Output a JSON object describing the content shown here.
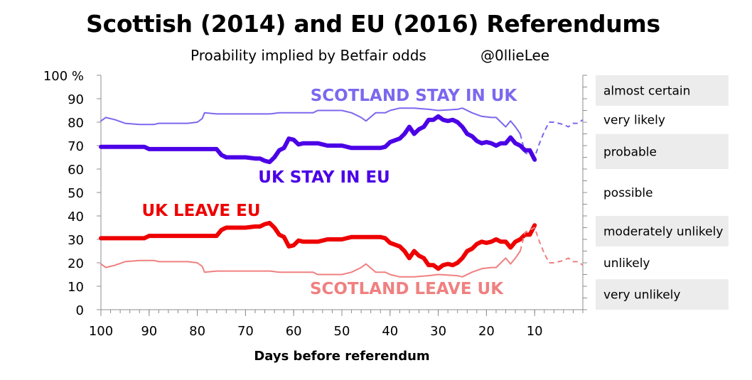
{
  "title": "Scottish (2014) and EU (2016) Referendums",
  "subtitle": "Proability implied by Betfair odds",
  "credit": "@0llieLee",
  "chart_data": {
    "type": "line",
    "xlabel": "Days before referendum",
    "ylabel": "",
    "xlim": [
      100,
      0
    ],
    "ylim": [
      0,
      100
    ],
    "x_ticks": [
      "100",
      "90",
      "80",
      "70",
      "60",
      "50",
      "40",
      "30",
      "20",
      "10"
    ],
    "y_ticks": [
      "0",
      "10",
      "20",
      "30",
      "40",
      "50",
      "60",
      "70",
      "80",
      "90",
      "100 %"
    ],
    "grid": false,
    "likelihood_bands": [
      {
        "label": "almost certain",
        "range": [
          87,
          100
        ],
        "shaded": true
      },
      {
        "label": "very likely",
        "range": [
          75,
          87
        ],
        "shaded": false
      },
      {
        "label": "probable",
        "range": [
          60,
          75
        ],
        "shaded": true
      },
      {
        "label": "possible",
        "range": [
          40,
          60
        ],
        "shaded": false
      },
      {
        "label": "moderately unlikely",
        "range": [
          27,
          40
        ],
        "shaded": true
      },
      {
        "label": "unlikely",
        "range": [
          13,
          27
        ],
        "shaded": false
      },
      {
        "label": "very unlikely",
        "range": [
          0,
          13
        ],
        "shaded": true
      }
    ],
    "series": [
      {
        "name": "SCOTLAND STAY IN UK",
        "color": "#7b68ee",
        "width": 2,
        "points": [
          [
            100,
            80.5
          ],
          [
            99,
            82
          ],
          [
            97,
            81
          ],
          [
            95,
            79.5
          ],
          [
            92,
            79
          ],
          [
            89,
            79
          ],
          [
            88,
            79.5
          ],
          [
            85,
            79.5
          ],
          [
            82,
            79.5
          ],
          [
            80,
            80
          ],
          [
            79,
            81.5
          ],
          [
            78.5,
            84
          ],
          [
            76,
            83.5
          ],
          [
            73,
            83.5
          ],
          [
            70,
            83.5
          ],
          [
            67,
            83.5
          ],
          [
            65,
            83.5
          ],
          [
            63,
            84
          ],
          [
            58,
            84
          ],
          [
            56,
            84
          ],
          [
            55,
            85
          ],
          [
            50,
            85
          ],
          [
            48,
            84
          ],
          [
            46,
            82
          ],
          [
            45,
            80.5
          ],
          [
            43,
            84
          ],
          [
            41,
            84
          ],
          [
            40,
            85
          ],
          [
            38,
            86
          ],
          [
            35,
            86
          ],
          [
            32,
            85.5
          ],
          [
            30,
            85
          ],
          [
            26,
            85.5
          ],
          [
            25,
            86
          ],
          [
            23,
            84
          ],
          [
            21,
            82.5
          ],
          [
            19,
            82
          ],
          [
            18,
            82
          ],
          [
            16,
            78
          ],
          [
            15,
            80.5
          ],
          [
            14,
            78
          ],
          [
            13,
            75
          ]
        ],
        "dashed_points": [
          [
            13,
            75
          ],
          [
            12,
            67
          ],
          [
            11,
            66
          ],
          [
            10,
            65
          ],
          [
            9,
            71
          ],
          [
            8,
            76
          ],
          [
            7,
            80
          ],
          [
            6,
            80
          ],
          [
            4,
            79
          ],
          [
            3,
            78
          ],
          [
            2,
            79.5
          ],
          [
            1,
            79.5
          ],
          [
            0,
            81
          ]
        ]
      },
      {
        "name": "UK STAY IN EU",
        "color": "#4b00e6",
        "width": 6,
        "points": [
          [
            100,
            69.5
          ],
          [
            93,
            69.5
          ],
          [
            91,
            69.5
          ],
          [
            90,
            68.5
          ],
          [
            85,
            68.5
          ],
          [
            80,
            68.5
          ],
          [
            76,
            68.5
          ],
          [
            75,
            66
          ],
          [
            74,
            65
          ],
          [
            72,
            65
          ],
          [
            70,
            65
          ],
          [
            68,
            64.5
          ],
          [
            67,
            64.5
          ],
          [
            66,
            63.5
          ],
          [
            65,
            63
          ],
          [
            64,
            65
          ],
          [
            63,
            68
          ],
          [
            62,
            69
          ],
          [
            61,
            73
          ],
          [
            60,
            72.5
          ],
          [
            59,
            70.5
          ],
          [
            58,
            71
          ],
          [
            55,
            71
          ],
          [
            53,
            70
          ],
          [
            50,
            70
          ],
          [
            48,
            69
          ],
          [
            45,
            69
          ],
          [
            42,
            69
          ],
          [
            41,
            69.5
          ],
          [
            40,
            71.5
          ],
          [
            38,
            73
          ],
          [
            37,
            75
          ],
          [
            36,
            78
          ],
          [
            35,
            75
          ],
          [
            34,
            77
          ],
          [
            33,
            78
          ],
          [
            32,
            81
          ],
          [
            31,
            81
          ],
          [
            30,
            82.5
          ],
          [
            29,
            81
          ],
          [
            28,
            80.5
          ],
          [
            27,
            81
          ],
          [
            26,
            80
          ],
          [
            25,
            78
          ],
          [
            24,
            75
          ],
          [
            23,
            74
          ],
          [
            22,
            72
          ],
          [
            21,
            71
          ],
          [
            20,
            71.5
          ],
          [
            19,
            71
          ],
          [
            18,
            70
          ],
          [
            17,
            71
          ],
          [
            16,
            71
          ],
          [
            15,
            73.5
          ],
          [
            14,
            71
          ],
          [
            13,
            70
          ],
          [
            12,
            68
          ],
          [
            11,
            68
          ],
          [
            10,
            64
          ]
        ]
      },
      {
        "name": "UK LEAVE EU",
        "color": "#ee0000",
        "width": 6,
        "points": [
          [
            100,
            30.5
          ],
          [
            93,
            30.5
          ],
          [
            91,
            30.5
          ],
          [
            90,
            31.5
          ],
          [
            85,
            31.5
          ],
          [
            80,
            31.5
          ],
          [
            76,
            31.5
          ],
          [
            75,
            34
          ],
          [
            74,
            35
          ],
          [
            72,
            35
          ],
          [
            70,
            35
          ],
          [
            68,
            35.5
          ],
          [
            67,
            35.5
          ],
          [
            66,
            36.5
          ],
          [
            65,
            37
          ],
          [
            64,
            35
          ],
          [
            63,
            32
          ],
          [
            62,
            31
          ],
          [
            61,
            27
          ],
          [
            60,
            27.5
          ],
          [
            59,
            29.5
          ],
          [
            58,
            29
          ],
          [
            55,
            29
          ],
          [
            53,
            30
          ],
          [
            50,
            30
          ],
          [
            48,
            31
          ],
          [
            45,
            31
          ],
          [
            42,
            31
          ],
          [
            41,
            30.5
          ],
          [
            40,
            28.5
          ],
          [
            38,
            27
          ],
          [
            37,
            25
          ],
          [
            36,
            22
          ],
          [
            35,
            25
          ],
          [
            34,
            23
          ],
          [
            33,
            22
          ],
          [
            32,
            19
          ],
          [
            31,
            19
          ],
          [
            30,
            17.5
          ],
          [
            29,
            19
          ],
          [
            28,
            19.5
          ],
          [
            27,
            19
          ],
          [
            26,
            20
          ],
          [
            25,
            22
          ],
          [
            24,
            25
          ],
          [
            23,
            26
          ],
          [
            22,
            28
          ],
          [
            21,
            29
          ],
          [
            20,
            28.5
          ],
          [
            19,
            29
          ],
          [
            18,
            30
          ],
          [
            17,
            29
          ],
          [
            16,
            29
          ],
          [
            15,
            26.5
          ],
          [
            14,
            29
          ],
          [
            13,
            30
          ],
          [
            12,
            32
          ],
          [
            11,
            32
          ],
          [
            10,
            36
          ]
        ]
      },
      {
        "name": "SCOTLAND LEAVE UK",
        "color": "#f08080",
        "width": 2,
        "points": [
          [
            100,
            19.5
          ],
          [
            99,
            18
          ],
          [
            97,
            19
          ],
          [
            95,
            20.5
          ],
          [
            92,
            21
          ],
          [
            89,
            21
          ],
          [
            88,
            20.5
          ],
          [
            85,
            20.5
          ],
          [
            82,
            20.5
          ],
          [
            80,
            20
          ],
          [
            79,
            18.5
          ],
          [
            78.5,
            16
          ],
          [
            76,
            16.5
          ],
          [
            73,
            16.5
          ],
          [
            70,
            16.5
          ],
          [
            67,
            16.5
          ],
          [
            65,
            16.5
          ],
          [
            63,
            16
          ],
          [
            58,
            16
          ],
          [
            56,
            16
          ],
          [
            55,
            15
          ],
          [
            50,
            15
          ],
          [
            48,
            16
          ],
          [
            46,
            18
          ],
          [
            45,
            19.5
          ],
          [
            43,
            16
          ],
          [
            41,
            16
          ],
          [
            40,
            15
          ],
          [
            38,
            14
          ],
          [
            35,
            14
          ],
          [
            32,
            14.5
          ],
          [
            30,
            15
          ],
          [
            26,
            14.5
          ],
          [
            25,
            14
          ],
          [
            23,
            16
          ],
          [
            21,
            17.5
          ],
          [
            19,
            18
          ],
          [
            18,
            18
          ],
          [
            16,
            22
          ],
          [
            15,
            19.5
          ],
          [
            14,
            22
          ],
          [
            13,
            25
          ]
        ],
        "dashed_points": [
          [
            13,
            25
          ],
          [
            12,
            33
          ],
          [
            11,
            34
          ],
          [
            10,
            35
          ],
          [
            9,
            29
          ],
          [
            8,
            24
          ],
          [
            7,
            20
          ],
          [
            6,
            20
          ],
          [
            4,
            21
          ],
          [
            3,
            22
          ],
          [
            2,
            20.5
          ],
          [
            1,
            20.5
          ],
          [
            0,
            19
          ]
        ]
      }
    ],
    "annotations": [
      {
        "text": "SCOTLAND STAY IN UK",
        "color": "#7b68ee"
      },
      {
        "text": "UK STAY IN EU",
        "color": "#4b00e6"
      },
      {
        "text": "UK LEAVE EU",
        "color": "#ee0000"
      },
      {
        "text": "SCOTLAND LEAVE UK",
        "color": "#f08080"
      }
    ]
  }
}
